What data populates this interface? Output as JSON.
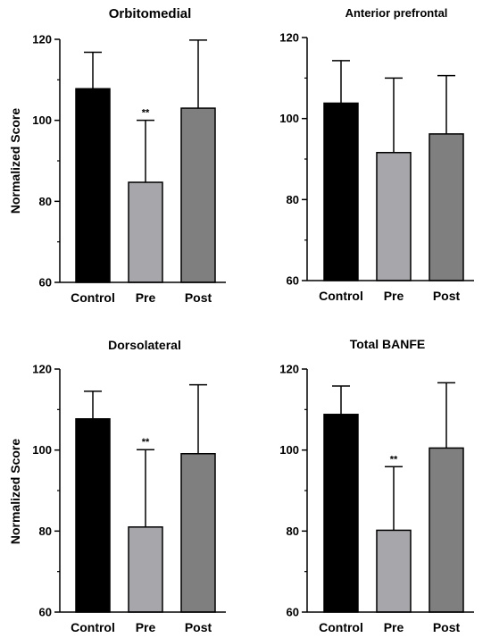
{
  "chart_data": [
    {
      "type": "bar",
      "title": "Orbitomedial",
      "ylabel": "Normalized Score",
      "ylim": [
        60,
        120
      ],
      "yticks": [
        "60",
        "80",
        "100",
        "120"
      ],
      "categories": [
        "Control",
        "Pre",
        "Post"
      ],
      "values": [
        107.8,
        84.7,
        103.0
      ],
      "error_upper": [
        116.8,
        100.0,
        119.8
      ],
      "colors": [
        "#000000",
        "#a6a6ab",
        "#7f7f7f"
      ],
      "annotations": [
        "",
        "**",
        ""
      ]
    },
    {
      "type": "bar",
      "title": "Anterior prefrontal",
      "ylabel": "",
      "ylim": [
        60,
        120
      ],
      "yticks": [
        "60",
        "80",
        "100",
        "120"
      ],
      "categories": [
        "Control",
        "Pre",
        "Post"
      ],
      "values": [
        103.8,
        91.6,
        96.2
      ],
      "error_upper": [
        114.3,
        110.0,
        110.6
      ],
      "colors": [
        "#000000",
        "#a6a6ab",
        "#7f7f7f"
      ],
      "annotations": [
        "",
        "",
        ""
      ]
    },
    {
      "type": "bar",
      "title": "Dorsolateral",
      "ylabel": "Normalized Score",
      "ylim": [
        60,
        120
      ],
      "yticks": [
        "60",
        "80",
        "100",
        "120"
      ],
      "categories": [
        "Control",
        "Pre",
        "Post"
      ],
      "values": [
        107.7,
        81.0,
        99.1
      ],
      "error_upper": [
        114.5,
        100.1,
        116.1
      ],
      "colors": [
        "#000000",
        "#a6a6ab",
        "#7f7f7f"
      ],
      "annotations": [
        "",
        "**",
        ""
      ]
    },
    {
      "type": "bar",
      "title": "Total BANFE",
      "ylabel": "",
      "ylim": [
        60,
        120
      ],
      "yticks": [
        "60",
        "80",
        "100",
        "120"
      ],
      "categories": [
        "Control",
        "Pre",
        "Post"
      ],
      "values": [
        108.8,
        80.2,
        100.5
      ],
      "error_upper": [
        115.8,
        95.9,
        116.6
      ],
      "colors": [
        "#000000",
        "#a6a6ab",
        "#7f7f7f"
      ],
      "annotations": [
        "",
        "**",
        ""
      ]
    }
  ]
}
